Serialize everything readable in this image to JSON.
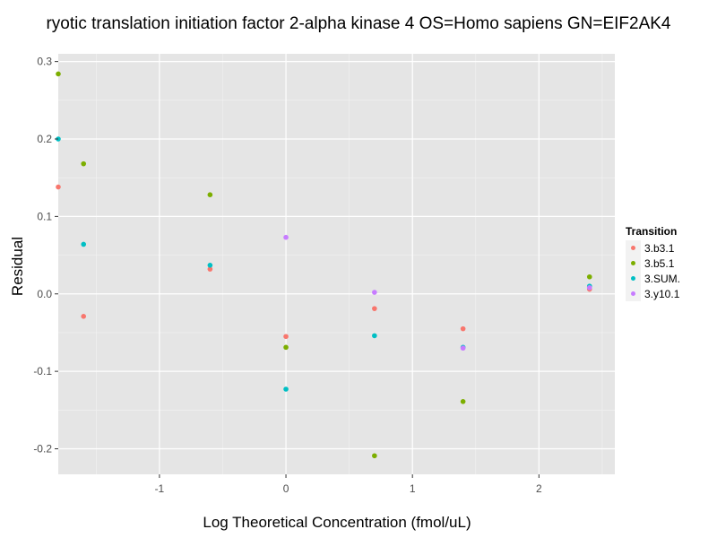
{
  "chart_data": {
    "type": "scatter",
    "title": "ryotic translation initiation factor 2-alpha kinase 4 OS=Homo sapiens GN=EIF2AK4",
    "xlabel": "Log Theoretical Concentration (fmol/uL)",
    "ylabel": "Residual",
    "xlim": [
      -1.8,
      2.6
    ],
    "ylim": [
      -0.233,
      0.31
    ],
    "xticks": [
      -1,
      0,
      1,
      2
    ],
    "yticks": [
      -0.2,
      -0.1,
      0.0,
      0.1,
      0.2,
      0.3
    ],
    "xtick_labels": [
      "-1",
      "0",
      "1",
      "2"
    ],
    "ytick_labels": [
      "-0.2",
      "-0.1",
      "0.0",
      "0.1",
      "0.2",
      "0.3"
    ],
    "grid": true,
    "legend": {
      "title": "Transition",
      "position": "right"
    },
    "series": [
      {
        "name": "3.b3.1",
        "color": "#F8766D",
        "points": [
          [
            -1.8,
            0.138
          ],
          [
            -1.6,
            -0.029
          ],
          [
            -0.6,
            0.032
          ],
          [
            0.0,
            -0.055
          ],
          [
            0.7,
            -0.019
          ],
          [
            1.4,
            -0.045
          ],
          [
            2.4,
            0.006
          ]
        ]
      },
      {
        "name": "3.b5.1",
        "color": "#7CAE00",
        "points": [
          [
            -1.8,
            0.284
          ],
          [
            -1.6,
            0.168
          ],
          [
            -0.6,
            0.128
          ],
          [
            0.0,
            -0.069
          ],
          [
            0.7,
            -0.209
          ],
          [
            1.4,
            -0.139
          ],
          [
            2.4,
            0.022
          ]
        ]
      },
      {
        "name": "3.SUM.",
        "color": "#00BFC4",
        "points": [
          [
            -1.8,
            0.2
          ],
          [
            -1.6,
            0.064
          ],
          [
            -0.6,
            0.037
          ],
          [
            0.0,
            -0.123
          ],
          [
            0.7,
            -0.054
          ],
          [
            1.4,
            -0.069
          ],
          [
            2.4,
            0.01
          ]
        ]
      },
      {
        "name": "3.y10.1",
        "color": "#C77CFF",
        "points": [
          [
            0.0,
            0.073
          ],
          [
            0.7,
            0.002
          ],
          [
            1.4,
            -0.07
          ],
          [
            2.4,
            0.008
          ]
        ]
      }
    ]
  }
}
